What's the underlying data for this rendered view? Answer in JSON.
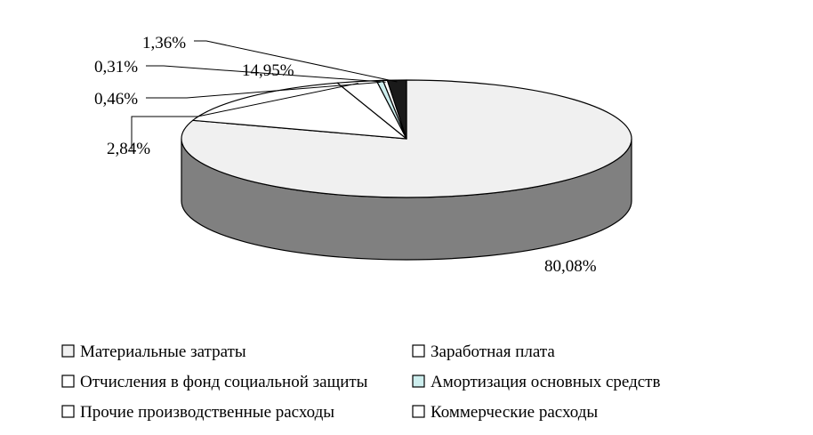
{
  "chart_data": {
    "type": "pie",
    "three_d": true,
    "legend_position": "bottom",
    "categories": [
      "Материальные затраты",
      "Заработная плата",
      "Отчисления в фонд социальной защиты",
      "Амортизация основных средств",
      "Прочие производственные расходы",
      "Коммерческие расходы"
    ],
    "values": [
      80.08,
      14.95,
      2.84,
      0.46,
      0.31,
      1.36
    ],
    "data_labels": [
      "80,08%",
      "14,95%",
      "2,84%",
      "0,46%",
      "0,31%",
      "1,36%"
    ],
    "colors": [
      "#f0f0f0",
      "#ffffff",
      "#ffffff",
      "#cdeeee",
      "#ffffff",
      "#1a1a1a"
    ],
    "side_color": "#808080"
  }
}
